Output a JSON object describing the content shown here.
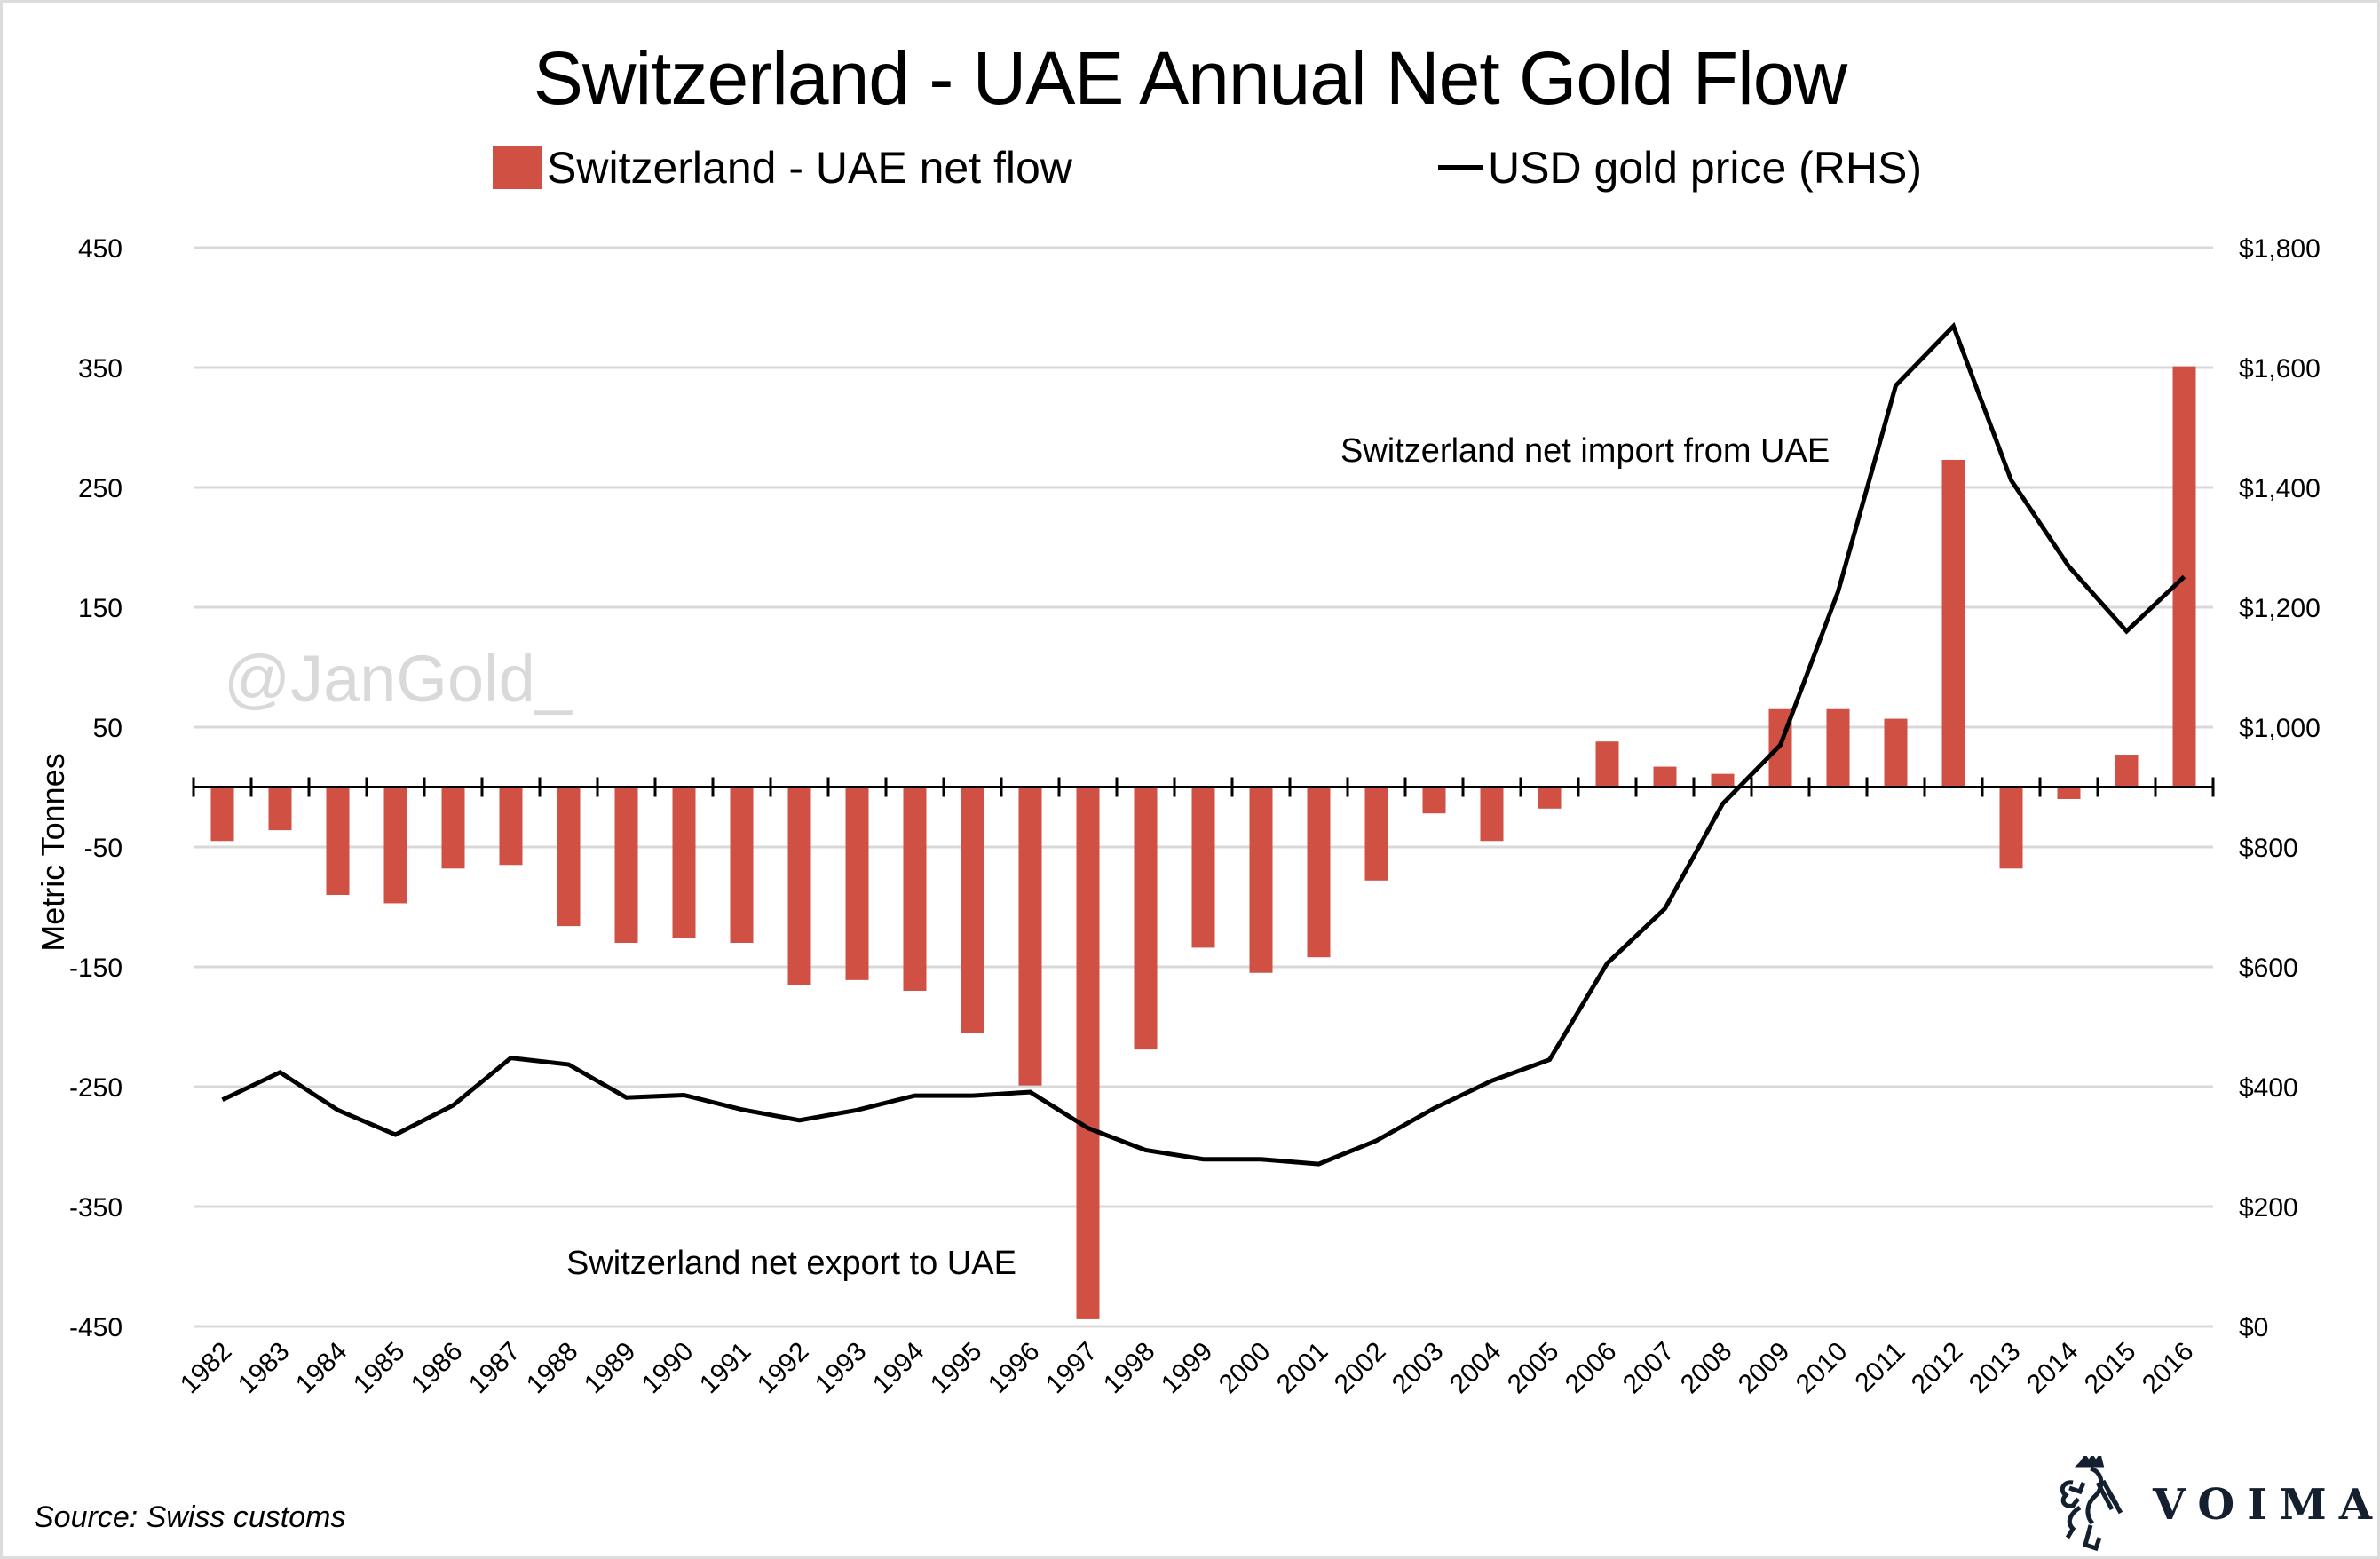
{
  "chart_data": {
    "type": "bar",
    "title": "Switzerland - UAE Annual Net Gold Flow",
    "xlabel": "",
    "ylabel": "Metric Tonnes",
    "y2label": "USD gold price (RHS)",
    "ylim": [
      -450,
      450
    ],
    "y2lim": [
      0,
      1800
    ],
    "yticks": [
      "450",
      "350",
      "250",
      "150",
      "50",
      "-50",
      "-150",
      "-250",
      "-350",
      "-450"
    ],
    "y2ticks": [
      "$1,800",
      "$1,600",
      "$1,400",
      "$1,200",
      "$1,000",
      "$800",
      "$600",
      "$400",
      "$200",
      "$0"
    ],
    "grid": true,
    "legend_position": "top-center",
    "categories": [
      "1982",
      "1983",
      "1984",
      "1985",
      "1986",
      "1987",
      "1988",
      "1989",
      "1990",
      "1991",
      "1992",
      "1993",
      "1994",
      "1995",
      "1996",
      "1997",
      "1998",
      "1999",
      "2000",
      "2001",
      "2002",
      "2003",
      "2004",
      "2005",
      "2006",
      "2007",
      "2008",
      "2009",
      "2010",
      "2011",
      "2012",
      "2013",
      "2014",
      "2015",
      "2016"
    ],
    "series": [
      {
        "name": "Switzerland - UAE net flow",
        "type": "bar",
        "axis": "left",
        "color": "#D05043",
        "values": [
          -45,
          -36,
          -90,
          -97,
          -68,
          -65,
          -116,
          -130,
          -126,
          -130,
          -165,
          -161,
          -170,
          -205,
          -249,
          -444,
          -219,
          -134,
          -155,
          -142,
          -78,
          -22,
          -45,
          -18,
          38,
          17,
          11,
          65,
          65,
          57,
          273,
          -68,
          -10,
          27,
          351
        ]
      },
      {
        "name": "USD gold price (RHS)",
        "type": "line",
        "axis": "right",
        "color": "#000000",
        "values": [
          378,
          424,
          361,
          320,
          369,
          448,
          437,
          382,
          386,
          362,
          344,
          361,
          385,
          385,
          391,
          331,
          294,
          279,
          279,
          271,
          310,
          364,
          410,
          445,
          606,
          697,
          872,
          970,
          1226,
          1570,
          1669,
          1412,
          1268,
          1160,
          1251
        ]
      }
    ],
    "annotations": [
      {
        "text": "Switzerland net import from UAE",
        "near": "2008-2012, above bars"
      },
      {
        "text": "Switzerland net export to UAE",
        "near": "1989-1996, bottom"
      }
    ],
    "watermark": "@JanGold_"
  },
  "footer": {
    "source": "Source: Swiss customs",
    "brand": "VOIMA"
  }
}
